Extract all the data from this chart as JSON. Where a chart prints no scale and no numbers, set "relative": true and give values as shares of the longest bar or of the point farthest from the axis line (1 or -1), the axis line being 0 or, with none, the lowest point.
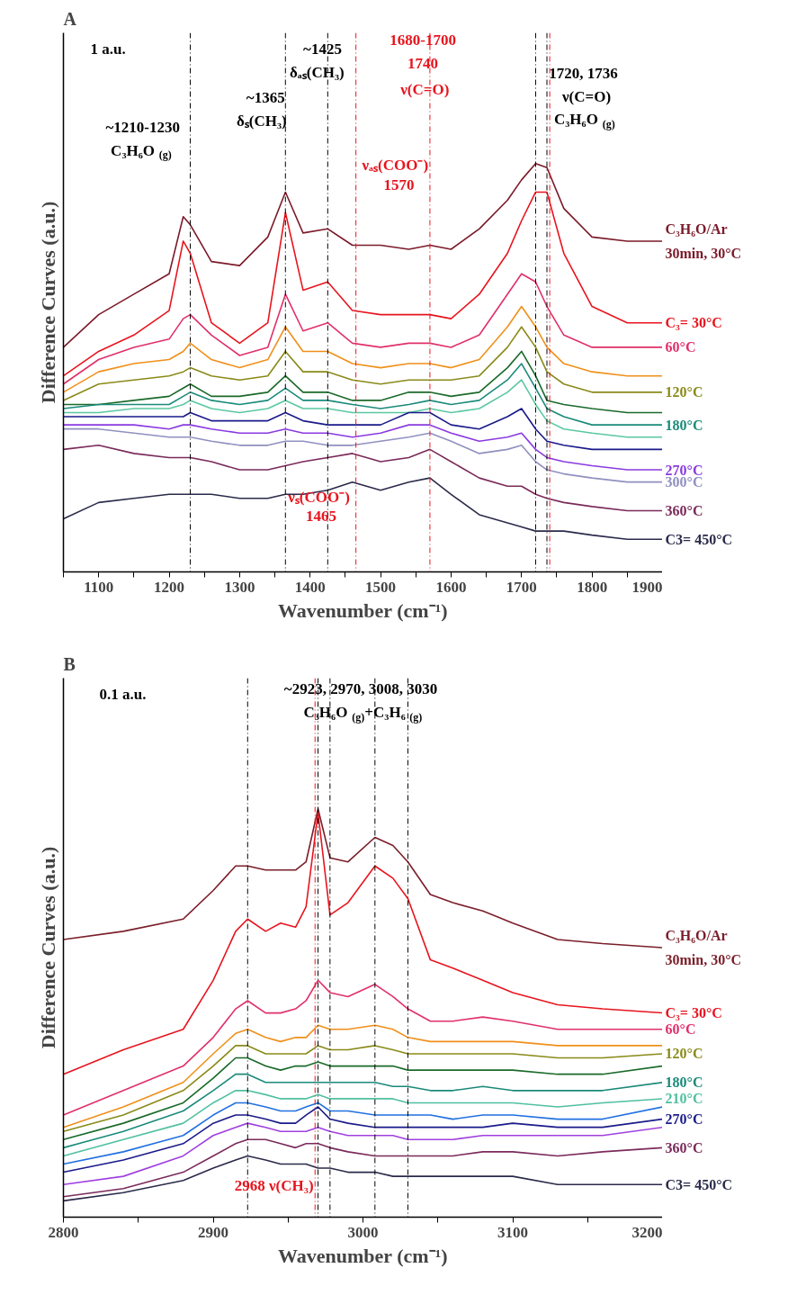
{
  "chart_data": [
    {
      "type": "line",
      "title": "A",
      "xlabel": "Wavenumber (cm⁻¹)",
      "ylabel": "Difference Curves (a.u.)",
      "relative": true,
      "line_style": "solid",
      "xlim": [
        1050,
        1900
      ],
      "xticks": [
        {
          "value": 1050,
          "label": null
        },
        1100,
        {
          "value": 1150,
          "label": null
        },
        1200,
        {
          "value": 1250,
          "label": null
        },
        1300,
        {
          "value": 1350,
          "label": null
        },
        1400,
        {
          "value": 1450,
          "label": null
        },
        1500,
        {
          "value": 1550,
          "label": null
        },
        1600,
        {
          "value": 1650,
          "label": null
        },
        1700,
        {
          "value": 1750,
          "label": null
        },
        1800,
        {
          "value": 1850,
          "label": null
        },
        1900
      ],
      "x": [
        1050,
        1100,
        1150,
        1200,
        1220,
        1230,
        1260,
        1300,
        1340,
        1365,
        1390,
        1425,
        1460,
        1500,
        1540,
        1570,
        1600,
        1640,
        1680,
        1700,
        1720,
        1736,
        1760,
        1800,
        1850,
        1900
      ],
      "series": [
        {
          "name": "C₃H₆O/Ar\n30min, 30°C",
          "color": "#7b1a2a",
          "values": [
            0.55,
            0.63,
            0.68,
            0.73,
            0.87,
            0.85,
            0.76,
            0.75,
            0.82,
            0.93,
            0.83,
            0.84,
            0.8,
            0.8,
            0.79,
            0.8,
            0.79,
            0.84,
            0.91,
            0.96,
            1.0,
            0.99,
            0.89,
            0.82,
            0.81,
            0.81
          ]
        },
        {
          "name": "C₃= 30°C",
          "color": "#e8141e",
          "values": [
            0.48,
            0.54,
            0.58,
            0.64,
            0.81,
            0.78,
            0.61,
            0.56,
            0.61,
            0.88,
            0.69,
            0.71,
            0.64,
            0.63,
            0.63,
            0.63,
            0.62,
            0.68,
            0.78,
            0.86,
            0.93,
            0.93,
            0.78,
            0.65,
            0.61,
            0.61
          ]
        },
        {
          "name": "60°C",
          "color": "#e0306a",
          "values": [
            0.46,
            0.52,
            0.55,
            0.57,
            0.62,
            0.63,
            0.58,
            0.53,
            0.55,
            0.68,
            0.59,
            0.61,
            0.56,
            0.55,
            0.56,
            0.56,
            0.55,
            0.58,
            0.68,
            0.73,
            0.71,
            0.65,
            0.58,
            0.55,
            0.55,
            0.55
          ]
        },
        {
          "color": "#f0901a",
          "values": [
            0.44,
            0.49,
            0.51,
            0.52,
            0.54,
            0.56,
            0.52,
            0.5,
            0.52,
            0.6,
            0.54,
            0.54,
            0.51,
            0.5,
            0.51,
            0.51,
            0.5,
            0.52,
            0.6,
            0.65,
            0.6,
            0.55,
            0.51,
            0.49,
            0.48,
            0.48
          ]
        },
        {
          "name": "120°C",
          "color": "#8a8a1a",
          "values": [
            0.42,
            0.46,
            0.47,
            0.48,
            0.49,
            0.5,
            0.48,
            0.47,
            0.48,
            0.54,
            0.49,
            0.49,
            0.47,
            0.46,
            0.47,
            0.47,
            0.47,
            0.48,
            0.55,
            0.6,
            0.55,
            0.49,
            0.46,
            0.44,
            0.44,
            0.44
          ]
        },
        {
          "color": "#1a6a2a",
          "values": [
            0.41,
            0.41,
            0.42,
            0.43,
            0.45,
            0.46,
            0.43,
            0.43,
            0.44,
            0.48,
            0.44,
            0.44,
            0.42,
            0.42,
            0.44,
            0.44,
            0.43,
            0.44,
            0.5,
            0.54,
            0.48,
            0.42,
            0.41,
            0.4,
            0.39,
            0.39
          ]
        },
        {
          "name": "180°C",
          "color": "#1a8a7a",
          "values": [
            0.4,
            0.41,
            0.41,
            0.41,
            0.43,
            0.44,
            0.42,
            0.41,
            0.42,
            0.45,
            0.42,
            0.42,
            0.41,
            0.4,
            0.41,
            0.42,
            0.41,
            0.42,
            0.47,
            0.51,
            0.45,
            0.4,
            0.38,
            0.36,
            0.36,
            0.36
          ]
        },
        {
          "color": "#5ac8a0",
          "values": [
            0.39,
            0.39,
            0.4,
            0.4,
            0.41,
            0.42,
            0.4,
            0.39,
            0.4,
            0.42,
            0.4,
            0.4,
            0.39,
            0.39,
            0.39,
            0.4,
            0.39,
            0.4,
            0.44,
            0.47,
            0.41,
            0.37,
            0.35,
            0.34,
            0.33,
            0.33
          ]
        },
        {
          "color": "#1a1a8a",
          "values": [
            0.38,
            0.38,
            0.38,
            0.38,
            0.38,
            0.39,
            0.37,
            0.37,
            0.37,
            0.39,
            0.37,
            0.36,
            0.36,
            0.36,
            0.39,
            0.39,
            0.36,
            0.35,
            0.38,
            0.4,
            0.35,
            0.32,
            0.31,
            0.3,
            0.3,
            0.3
          ]
        },
        {
          "name": "270°C",
          "color": "#8a3ae0",
          "values": [
            0.36,
            0.36,
            0.36,
            0.35,
            0.36,
            0.36,
            0.35,
            0.34,
            0.34,
            0.35,
            0.34,
            0.34,
            0.33,
            0.34,
            0.36,
            0.36,
            0.34,
            0.32,
            0.33,
            0.34,
            0.3,
            0.28,
            0.27,
            0.26,
            0.25,
            0.25
          ]
        },
        {
          "name": "300°C",
          "color": "#9090c0",
          "values": [
            0.35,
            0.35,
            0.34,
            0.33,
            0.33,
            0.33,
            0.32,
            0.31,
            0.31,
            0.32,
            0.32,
            0.31,
            0.31,
            0.32,
            0.33,
            0.34,
            0.32,
            0.29,
            0.3,
            0.31,
            0.27,
            0.25,
            0.24,
            0.23,
            0.22,
            0.22
          ]
        },
        {
          "name": "360°C",
          "color": "#7a2a5a",
          "values": [
            0.3,
            0.31,
            0.29,
            0.28,
            0.28,
            0.28,
            0.27,
            0.25,
            0.25,
            0.26,
            0.27,
            0.28,
            0.29,
            0.27,
            0.28,
            0.3,
            0.27,
            0.23,
            0.21,
            0.21,
            0.19,
            0.18,
            0.17,
            0.16,
            0.15,
            0.15
          ]
        },
        {
          "name": "C3= 450°C",
          "color": "#2a2a4a",
          "values": [
            0.13,
            0.17,
            0.18,
            0.19,
            0.19,
            0.19,
            0.19,
            0.18,
            0.18,
            0.19,
            0.19,
            0.2,
            0.22,
            0.2,
            0.22,
            0.23,
            0.19,
            0.14,
            0.12,
            0.11,
            0.1,
            0.1,
            0.1,
            0.09,
            0.08,
            0.08
          ]
        }
      ],
      "ref_lines": [
        {
          "axis": "x",
          "value": 1230,
          "color": "#000000",
          "line_style": "dashed",
          "label": "~1210-1230\nC₃H₆O$_{(g)}$"
        },
        {
          "axis": "x",
          "value": 1365,
          "color": "#000000",
          "line_style": "dashed",
          "label": "~1365\nδₛ(CH₃)"
        },
        {
          "axis": "x",
          "value": 1425,
          "color": "#000000",
          "line_style": "dashed",
          "label": "~1425\nδₐₛ(CH₃)"
        },
        {
          "axis": "x",
          "value": 1720,
          "color": "#000000",
          "line_style": "dashed"
        },
        {
          "axis": "x",
          "value": 1736,
          "color": "#000000",
          "line_style": "dashed",
          "label": "1720, 1736\nν(C=O)\nC₃H₆O$_{(g)}$"
        },
        {
          "axis": "x",
          "value": 1465,
          "color": "#e8141e",
          "line_style": "dashed",
          "label": "νₛ(COO⁻)\n1465"
        },
        {
          "axis": "x",
          "value": 1570,
          "color": "#e8141e",
          "line_style": "dashed",
          "label": "νₐₛ(COO⁻)\n1570"
        },
        {
          "axis": "x",
          "value": 1740,
          "color": "#e8141e",
          "line_style": "dashed",
          "label": "1680-1700\n1740\nν(C=O)"
        }
      ],
      "annotations": [
        "1 a.u."
      ]
    },
    {
      "type": "line",
      "title": "B",
      "xlabel": "Wavenumber (cm⁻¹)",
      "ylabel": "Difference Curves (a.u.)",
      "relative": true,
      "line_style": "solid",
      "xlim": [
        2800,
        3200
      ],
      "xticks": [
        2800,
        {
          "value": 2850,
          "label": null
        },
        2900,
        {
          "value": 2950,
          "label": null
        },
        3000,
        {
          "value": 3050,
          "label": null
        },
        3100,
        {
          "value": 3150,
          "label": null
        },
        3200
      ],
      "x": [
        2800,
        2840,
        2880,
        2900,
        2915,
        2923,
        2935,
        2945,
        2955,
        2962,
        2970,
        2978,
        2990,
        3008,
        3020,
        3030,
        3045,
        3060,
        3080,
        3100,
        3130,
        3160,
        3200
      ],
      "series": [
        {
          "name": "C₃H₆O/Ar\n30min, 30°C",
          "color": "#7a1e2a",
          "values": [
            0.68,
            0.7,
            0.73,
            0.8,
            0.86,
            0.86,
            0.85,
            0.85,
            0.85,
            0.87,
            1.0,
            0.88,
            0.87,
            0.93,
            0.91,
            0.87,
            0.79,
            0.77,
            0.75,
            0.72,
            0.68,
            0.67,
            0.66
          ]
        },
        {
          "name": "C₃= 30°C",
          "color": "#e8141e",
          "values": [
            0.35,
            0.41,
            0.46,
            0.58,
            0.7,
            0.73,
            0.7,
            0.72,
            0.71,
            0.76,
            0.99,
            0.74,
            0.77,
            0.86,
            0.83,
            0.78,
            0.63,
            0.61,
            0.58,
            0.55,
            0.52,
            0.51,
            0.5
          ]
        },
        {
          "name": "60°C",
          "color": "#e0306a",
          "values": [
            0.25,
            0.31,
            0.37,
            0.44,
            0.51,
            0.53,
            0.5,
            0.5,
            0.51,
            0.53,
            0.58,
            0.55,
            0.54,
            0.57,
            0.54,
            0.51,
            0.48,
            0.48,
            0.49,
            0.48,
            0.46,
            0.46,
            0.46
          ]
        },
        {
          "color": "#f0901a",
          "values": [
            0.22,
            0.27,
            0.33,
            0.4,
            0.45,
            0.46,
            0.44,
            0.43,
            0.44,
            0.44,
            0.47,
            0.46,
            0.46,
            0.47,
            0.46,
            0.44,
            0.43,
            0.43,
            0.43,
            0.43,
            0.42,
            0.42,
            0.42
          ]
        },
        {
          "name": "120°C",
          "color": "#8a8a1a",
          "values": [
            0.21,
            0.25,
            0.31,
            0.37,
            0.42,
            0.42,
            0.4,
            0.4,
            0.4,
            0.4,
            0.42,
            0.41,
            0.41,
            0.42,
            0.41,
            0.4,
            0.4,
            0.4,
            0.4,
            0.4,
            0.39,
            0.39,
            0.4
          ]
        },
        {
          "color": "#1a6a2a",
          "values": [
            0.19,
            0.23,
            0.28,
            0.34,
            0.39,
            0.39,
            0.37,
            0.36,
            0.37,
            0.37,
            0.38,
            0.37,
            0.37,
            0.37,
            0.37,
            0.36,
            0.36,
            0.36,
            0.36,
            0.36,
            0.35,
            0.35,
            0.37
          ]
        },
        {
          "name": "180°C",
          "color": "#1a8a7a",
          "values": [
            0.17,
            0.21,
            0.26,
            0.31,
            0.35,
            0.35,
            0.33,
            0.33,
            0.33,
            0.33,
            0.33,
            0.33,
            0.33,
            0.33,
            0.32,
            0.32,
            0.31,
            0.31,
            0.32,
            0.31,
            0.31,
            0.31,
            0.33
          ]
        },
        {
          "name": "210°C",
          "color": "#50c0a0",
          "values": [
            0.15,
            0.19,
            0.23,
            0.28,
            0.31,
            0.31,
            0.3,
            0.29,
            0.29,
            0.29,
            0.3,
            0.29,
            0.29,
            0.29,
            0.29,
            0.28,
            0.28,
            0.28,
            0.28,
            0.28,
            0.27,
            0.28,
            0.29
          ]
        },
        {
          "color": "#2070e0",
          "values": [
            0.13,
            0.16,
            0.2,
            0.25,
            0.28,
            0.28,
            0.27,
            0.26,
            0.26,
            0.27,
            0.28,
            0.26,
            0.26,
            0.25,
            0.25,
            0.25,
            0.25,
            0.24,
            0.25,
            0.25,
            0.24,
            0.24,
            0.27
          ]
        },
        {
          "name": "270°C",
          "color": "#1a1a8a",
          "values": [
            0.11,
            0.14,
            0.18,
            0.23,
            0.25,
            0.25,
            0.24,
            0.23,
            0.23,
            0.25,
            0.27,
            0.24,
            0.23,
            0.22,
            0.22,
            0.22,
            0.22,
            0.22,
            0.22,
            0.23,
            0.22,
            0.22,
            0.24
          ]
        },
        {
          "color": "#a040e0",
          "values": [
            0.08,
            0.1,
            0.15,
            0.2,
            0.22,
            0.23,
            0.22,
            0.21,
            0.21,
            0.21,
            0.22,
            0.21,
            0.2,
            0.2,
            0.2,
            0.19,
            0.19,
            0.19,
            0.2,
            0.2,
            0.2,
            0.2,
            0.22
          ]
        },
        {
          "name": "360°C",
          "color": "#7a2a5a",
          "values": [
            0.05,
            0.07,
            0.11,
            0.15,
            0.18,
            0.19,
            0.19,
            0.18,
            0.17,
            0.18,
            0.18,
            0.17,
            0.16,
            0.15,
            0.15,
            0.15,
            0.15,
            0.15,
            0.16,
            0.16,
            0.15,
            0.16,
            0.17
          ]
        },
        {
          "name": "C3= 450°C",
          "color": "#2a2a4a",
          "values": [
            0.04,
            0.06,
            0.09,
            0.12,
            0.14,
            0.15,
            0.14,
            0.13,
            0.13,
            0.13,
            0.12,
            0.12,
            0.11,
            0.11,
            0.1,
            0.1,
            0.1,
            0.1,
            0.1,
            0.1,
            0.08,
            0.08,
            0.08
          ]
        }
      ],
      "ref_lines": [
        {
          "axis": "x",
          "value": 2923,
          "color": "#000000",
          "line_style": "dashed"
        },
        {
          "axis": "x",
          "value": 2970,
          "color": "#000000",
          "line_style": "dashed",
          "label": "~2923, 2970, 3008, 3030\nC₃H₆O$_{(g)}$+C₃H₆$_{(g)}$"
        },
        {
          "axis": "x",
          "value": 2978,
          "color": "#000000",
          "line_style": "dashed"
        },
        {
          "axis": "x",
          "value": 3008,
          "color": "#000000",
          "line_style": "dashed"
        },
        {
          "axis": "x",
          "value": 3030,
          "color": "#000000",
          "line_style": "dashed"
        },
        {
          "axis": "x",
          "value": 2968,
          "color": "#e8141e",
          "line_style": "dashed",
          "label": "2968 ν(CH₃)"
        }
      ],
      "annotations": [
        "0.1 a.u."
      ]
    }
  ]
}
